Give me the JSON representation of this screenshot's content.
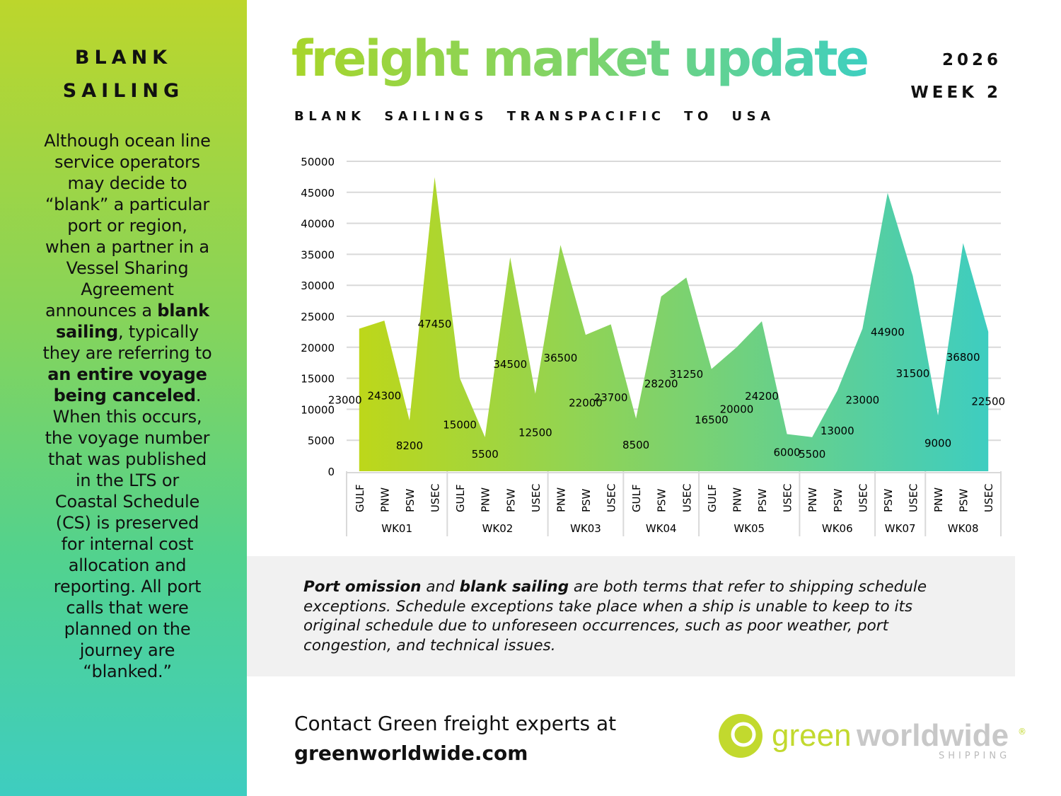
{
  "sidebar": {
    "title": "BLANK\nSAILING",
    "p1": "Although ocean line service operators may decide to “blank” a particular port or region, when a partner in a Vessel Sharing Agreement announces a ",
    "b1": "blank sailing",
    "p2": ", typically they are referring to ",
    "b2": "an entire voyage being canceled",
    "p3": ". When this occurs, the voyage number that was published in the LTS or Coastal Schedule (CS) is preserved for internal cost allocation and reporting. All port calls that were planned on the journey are “blanked.”"
  },
  "header": {
    "title": "freight market update",
    "year": "2026",
    "week": "WEEK 2",
    "subtitle": "BLANK SAILINGS  TRANSPACIFIC TO USA"
  },
  "chart_data": {
    "type": "area",
    "title": "BLANK SAILINGS  TRANSPACIFIC TO USA",
    "ylim": [
      0,
      50000
    ],
    "yticks": [
      0,
      5000,
      10000,
      15000,
      20000,
      25000,
      30000,
      35000,
      40000,
      45000,
      50000
    ],
    "grid": true,
    "groups": [
      {
        "name": "WK01",
        "categories": [
          "GULF",
          "PNW",
          "PSW",
          "USEC"
        ],
        "values": [
          23000,
          24300,
          8200,
          47450
        ]
      },
      {
        "name": "WK02",
        "categories": [
          "GULF",
          "PNW",
          "PSW",
          "USEC"
        ],
        "values": [
          15000,
          5500,
          34500,
          12500
        ]
      },
      {
        "name": "WK03",
        "categories": [
          "PNW",
          "PSW",
          "USEC"
        ],
        "values": [
          36500,
          22000,
          23700
        ]
      },
      {
        "name": "WK04",
        "categories": [
          "GULF",
          "PSW",
          "USEC"
        ],
        "values": [
          8500,
          28200,
          31250
        ]
      },
      {
        "name": "WK05",
        "categories": [
          "GULF",
          "PNW",
          "PSW",
          "USEC"
        ],
        "values": [
          16500,
          20000,
          24200,
          6000
        ]
      },
      {
        "name": "WK06",
        "categories": [
          "PNW",
          "PSW",
          "USEC"
        ],
        "values": [
          5500,
          13000,
          23000
        ]
      },
      {
        "name": "WK07",
        "categories": [
          "PSW",
          "USEC"
        ],
        "values": [
          44900,
          31500
        ]
      },
      {
        "name": "WK08",
        "categories": [
          "PNW",
          "PSW",
          "USEC"
        ],
        "values": [
          9000,
          36800,
          22500
        ]
      }
    ],
    "colors": {
      "start": "#bdd71a",
      "end": "#3ecdc0"
    }
  },
  "note": {
    "b1": "Port omission",
    "t1": " and ",
    "b2": "blank sailing",
    "t2": " are both terms that refer to shipping schedule exceptions. Schedule exceptions take place when a ship is unable to keep to its original schedule due to unforeseen occurrences, such as poor weather, port congestion, and technical issues."
  },
  "contact": {
    "line1": "Contact Green freight experts at",
    "link": "greenworldwide.com"
  },
  "logo": {
    "green": "green",
    "grey": "worldwide",
    "reg": "®",
    "sub": "SHIPPING"
  }
}
